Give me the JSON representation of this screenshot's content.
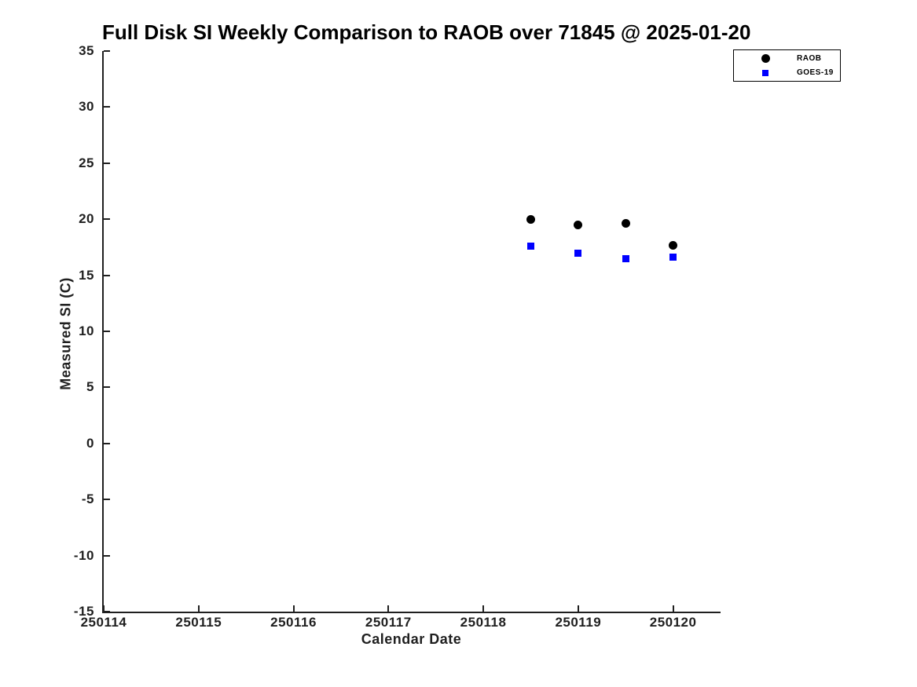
{
  "chart_data": {
    "type": "scatter",
    "title": "Full Disk SI Weekly Comparison to RAOB over 71845 @ 2025-01-20",
    "xlabel": "Calendar Date",
    "ylabel": "Measured SI (C)",
    "xlim": [
      250114,
      250120.5
    ],
    "ylim": [
      -15,
      35
    ],
    "xticks": [
      250114,
      250115,
      250116,
      250117,
      250118,
      250119,
      250120
    ],
    "yticks": [
      35,
      30,
      25,
      20,
      15,
      10,
      5,
      0,
      -5,
      -10,
      -15
    ],
    "grid": false,
    "axis_color": "#1f1f1f",
    "legend_position": "outside-top-right",
    "series": [
      {
        "name": "RAOB",
        "marker": "circle",
        "color": "#000000",
        "marker_size": 11,
        "x": [
          250118.5,
          250119.0,
          250119.5,
          250120.0
        ],
        "y": [
          20.0,
          19.5,
          19.6,
          17.7
        ]
      },
      {
        "name": "GOES-19",
        "marker": "square",
        "color": "#0000ff",
        "marker_size": 9,
        "x": [
          250118.5,
          250119.0,
          250119.5,
          250120.0
        ],
        "y": [
          17.6,
          17.0,
          16.5,
          16.6
        ]
      }
    ]
  }
}
